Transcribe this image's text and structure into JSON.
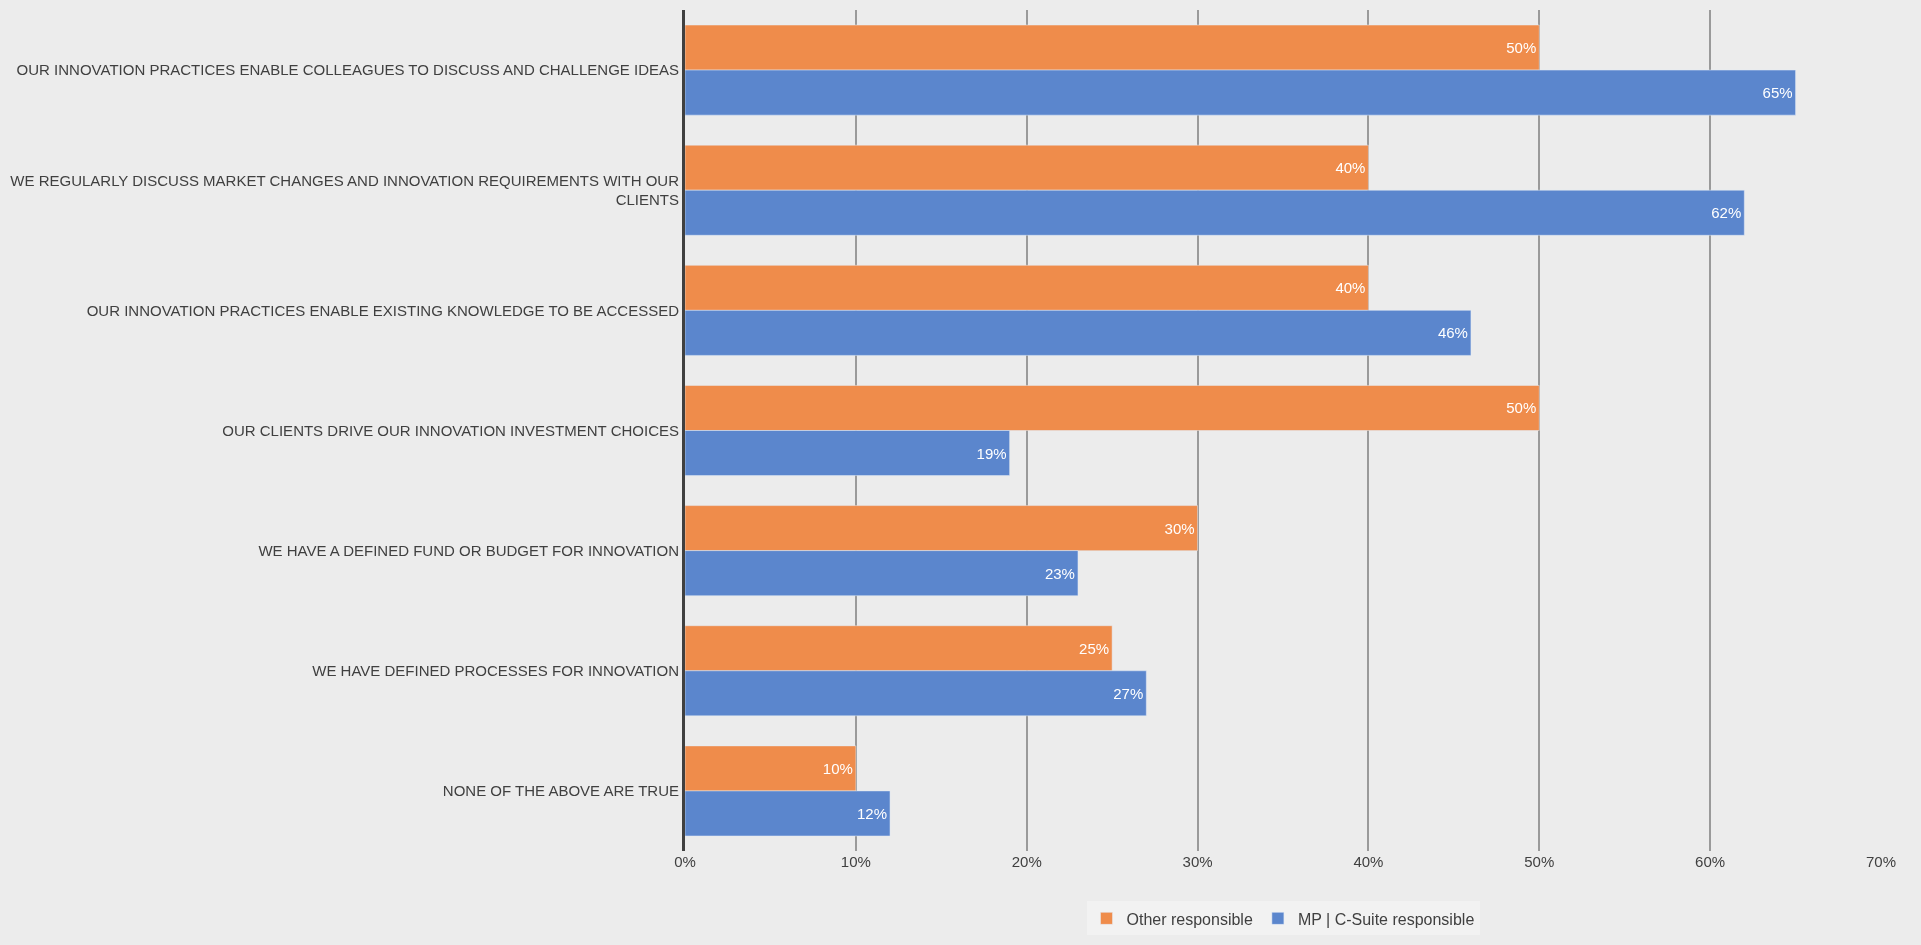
{
  "chart_data": {
    "type": "bar",
    "orientation": "horizontal",
    "categories": [
      "OUR INNOVATION PRACTICES ENABLE COLLEAGUES TO DISCUSS AND CHALLENGE IDEAS",
      "WE REGULARLY DISCUSS MARKET CHANGES AND INNOVATION REQUIREMENTS WITH OUR CLIENTS",
      "OUR INNOVATION PRACTICES ENABLE EXISTING KNOWLEDGE TO BE ACCESSED",
      "OUR CLIENTS DRIVE OUR INNOVATION INVESTMENT CHOICES",
      "WE HAVE A DEFINED FUND OR BUDGET FOR INNOVATION",
      "WE HAVE DEFINED PROCESSES FOR INNOVATION",
      "NONE OF THE ABOVE ARE TRUE"
    ],
    "series": [
      {
        "name": "Other responsible",
        "color": "#ef8c4b",
        "values": [
          50,
          40,
          40,
          50,
          30,
          25,
          10
        ],
        "value_labels": [
          "50%",
          "40%",
          "40%",
          "50%",
          "30%",
          "25%",
          "10%"
        ]
      },
      {
        "name": "MP | C-Suite responsible",
        "color": "#5b86cd",
        "values": [
          65,
          62,
          46,
          19,
          23,
          27,
          12
        ],
        "value_labels": [
          "65%",
          "62%",
          "46%",
          "19%",
          "23%",
          "27%",
          "12%"
        ]
      }
    ],
    "xlim": [
      0,
      70
    ],
    "xticks": [
      {
        "value": 0,
        "label": "0%"
      },
      {
        "value": 10,
        "label": "10%"
      },
      {
        "value": 20,
        "label": "20%"
      },
      {
        "value": 30,
        "label": "30%"
      },
      {
        "value": 40,
        "label": "40%"
      },
      {
        "value": 50,
        "label": "50%"
      },
      {
        "value": 60,
        "label": "60%"
      },
      {
        "value": 70,
        "label": "70%"
      }
    ],
    "grid": "x",
    "legend": "bottom"
  }
}
